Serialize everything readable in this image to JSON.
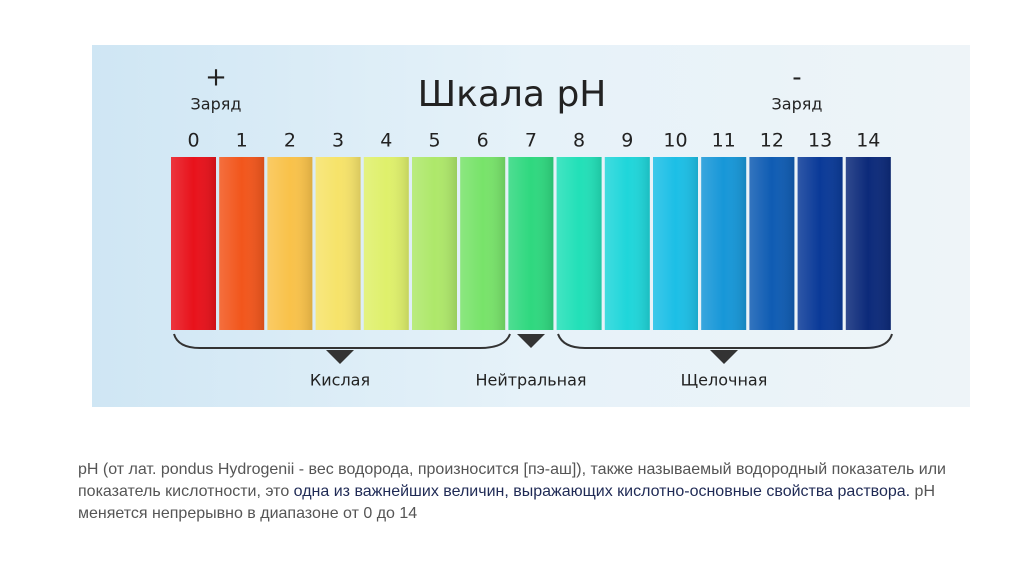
{
  "image": {
    "title": "Шкала pH",
    "plus_sign": "+",
    "plus_label": "Заряд",
    "minus_sign": "-",
    "minus_label": "Заряд",
    "scale": [
      "0",
      "1",
      "2",
      "3",
      "4",
      "5",
      "6",
      "7",
      "8",
      "9",
      "10",
      "11",
      "12",
      "13",
      "14"
    ],
    "groups": [
      "Кислая",
      "Нейтральная",
      "Щелочная"
    ]
  },
  "paragraph": {
    "part1": "pH (от лат. pondus Hydrogenii - вес водорода, произносится [пэ-аш]), также называемый водородный показатель или показатель кислотности, это ",
    "highlight": "одна из важнейших величин, выражающих кислотно-основные свойства раствора.",
    "part2": " pH меняется непрерывно в диапазоне от 0 до 14"
  }
}
